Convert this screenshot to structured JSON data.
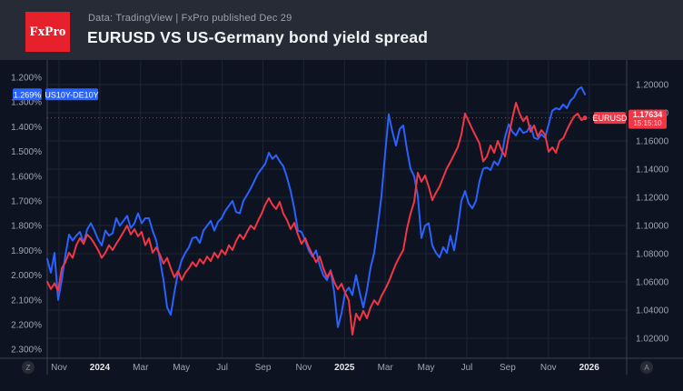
{
  "header": {
    "logo_text": "FxPro",
    "subtitle": "Data: TradingView | FxPro published Dec 29",
    "title": "EURUSD VS US-Germany bond yield spread"
  },
  "controls": {
    "z_label": "Z",
    "a_label": "A"
  },
  "colors": {
    "header_bg": "#272b35",
    "chart_bg": "#0d1320",
    "blue": "#2962ff",
    "red": "#f23645",
    "grid": "#1d2534",
    "axis_line": "#3c4250",
    "tick_text": "#9fa6b2",
    "year_text": "#e4e7ec",
    "logo_red": "#e6212b"
  },
  "chart_data": {
    "type": "line",
    "title": "EURUSD VS US-Germany bond yield spread",
    "x_axis": {
      "unit": "months since Nov 2023",
      "range": [
        -0.58,
        27.9
      ],
      "ticks": [
        {
          "label": "Nov",
          "m": 0,
          "bold": false
        },
        {
          "label": "2024",
          "m": 2,
          "bold": true
        },
        {
          "label": "Mar",
          "m": 4,
          "bold": false
        },
        {
          "label": "May",
          "m": 6,
          "bold": false
        },
        {
          "label": "Jul",
          "m": 8,
          "bold": false
        },
        {
          "label": "Sep",
          "m": 10,
          "bold": false
        },
        {
          "label": "Nov",
          "m": 12,
          "bold": false
        },
        {
          "label": "2025",
          "m": 14,
          "bold": true
        },
        {
          "label": "Mar",
          "m": 16,
          "bold": false
        },
        {
          "label": "May",
          "m": 18,
          "bold": false
        },
        {
          "label": "Jul",
          "m": 20,
          "bold": false
        },
        {
          "label": "Sep",
          "m": 22,
          "bold": false
        },
        {
          "label": "Nov",
          "m": 24,
          "bold": false
        },
        {
          "label": "2026",
          "m": 26,
          "bold": true
        }
      ]
    },
    "left_axis": {
      "name": "US10Y-DE10Y spread (%), inverted",
      "range_top_to_bottom": [
        1.2,
        2.3
      ],
      "ticks": [
        {
          "label": "1.200%",
          "value": 1.2
        },
        {
          "label": "1.300%",
          "value": 1.3
        },
        {
          "label": "1.400%",
          "value": 1.4
        },
        {
          "label": "1.500%",
          "value": 1.5
        },
        {
          "label": "1.600%",
          "value": 1.6
        },
        {
          "label": "1.700%",
          "value": 1.7
        },
        {
          "label": "1.800%",
          "value": 1.8
        },
        {
          "label": "1.900%",
          "value": 1.9
        },
        {
          "label": "2.000%",
          "value": 2.0
        },
        {
          "label": "2.100%",
          "value": 2.1
        },
        {
          "label": "2.200%",
          "value": 2.2
        },
        {
          "label": "2.300%",
          "value": 2.3
        }
      ]
    },
    "right_axis": {
      "name": "EURUSD",
      "range_bottom_to_top": [
        1.02,
        1.2
      ],
      "ticks": [
        {
          "label": "1.20000",
          "value": 1.2
        },
        {
          "label": "1.18000",
          "value": 1.18
        },
        {
          "label": "1.16000",
          "value": 1.16
        },
        {
          "label": "1.14000",
          "value": 1.14
        },
        {
          "label": "1.12000",
          "value": 1.12
        },
        {
          "label": "1.10000",
          "value": 1.1
        },
        {
          "label": "1.08000",
          "value": 1.08
        },
        {
          "label": "1.06000",
          "value": 1.06
        },
        {
          "label": "1.04000",
          "value": 1.04
        },
        {
          "label": "1.02000",
          "value": 1.02
        }
      ]
    },
    "price_line": {
      "series": "EURUSD",
      "value": 1.17634,
      "color": "#f23645",
      "style": "dotted"
    },
    "badges": {
      "spread_value": "1.269%",
      "spread_label": "US10Y-DE10Y",
      "spread_value_num": 1.269,
      "eurusd_label": "EURUSD",
      "eurusd_value": "1.17634",
      "eurusd_time": "15:15:10",
      "eurusd_value_num": 1.17634
    },
    "series": [
      {
        "name": "US10Y-DE10Y",
        "axis": "left",
        "color": "#2962ff",
        "t0": -0.58,
        "dt": 0.1782,
        "values": [
          1.935,
          1.99,
          1.91,
          2.1,
          2.02,
          1.92,
          1.836,
          1.86,
          1.84,
          1.825,
          1.87,
          1.815,
          1.79,
          1.82,
          1.855,
          1.88,
          1.82,
          1.84,
          1.83,
          1.77,
          1.8,
          1.78,
          1.76,
          1.81,
          1.79,
          1.75,
          1.79,
          1.77,
          1.77,
          1.82,
          1.86,
          1.935,
          2.02,
          2.13,
          2.16,
          2.07,
          1.99,
          1.94,
          1.91,
          1.887,
          1.85,
          1.846,
          1.87,
          1.82,
          1.8,
          1.78,
          1.82,
          1.785,
          1.77,
          1.74,
          1.72,
          1.7,
          1.745,
          1.75,
          1.7,
          1.675,
          1.65,
          1.62,
          1.59,
          1.57,
          1.55,
          1.505,
          1.53,
          1.515,
          1.54,
          1.56,
          1.605,
          1.66,
          1.73,
          1.82,
          1.825,
          1.86,
          1.9,
          1.925,
          1.9,
          1.96,
          2.0,
          2.02,
          1.98,
          2.07,
          2.21,
          2.155,
          2.07,
          2.05,
          2.08,
          2.0,
          2.07,
          2.13,
          2.06,
          1.97,
          1.91,
          1.8,
          1.68,
          1.51,
          1.35,
          1.42,
          1.476,
          1.41,
          1.395,
          1.49,
          1.57,
          1.6,
          1.68,
          1.85,
          1.8,
          1.79,
          1.88,
          1.91,
          1.928,
          1.887,
          1.91,
          1.84,
          1.9,
          1.81,
          1.7,
          1.66,
          1.71,
          1.73,
          1.7,
          1.62,
          1.57,
          1.565,
          1.575,
          1.54,
          1.555,
          1.52,
          1.44,
          1.39,
          1.42,
          1.435,
          1.405,
          1.425,
          1.42,
          1.395,
          1.445,
          1.45,
          1.43,
          1.445,
          1.39,
          1.335,
          1.325,
          1.33,
          1.31,
          1.325,
          1.295,
          1.28,
          1.25,
          1.24,
          1.269
        ]
      },
      {
        "name": "EURUSD",
        "axis": "right",
        "color": "#f23645",
        "t0": -0.58,
        "dt": 0.1782,
        "values": [
          1.06,
          1.055,
          1.059,
          1.0536,
          1.0697,
          1.074,
          1.0807,
          1.077,
          1.086,
          1.091,
          1.087,
          1.0936,
          1.091,
          1.087,
          1.0826,
          1.077,
          1.0807,
          1.086,
          1.0826,
          1.087,
          1.091,
          1.0955,
          1.1,
          1.0936,
          1.0974,
          1.0923,
          1.0955,
          1.086,
          1.091,
          1.0807,
          1.0845,
          1.0794,
          1.073,
          1.077,
          1.0697,
          1.0632,
          1.0677,
          1.0613,
          1.0665,
          1.0697,
          1.074,
          1.071,
          1.0761,
          1.073,
          1.078,
          1.0748,
          1.0807,
          1.077,
          1.0826,
          1.0794,
          1.086,
          1.0826,
          1.089,
          1.0936,
          1.0903,
          1.0955,
          1.1,
          1.0974,
          1.1032,
          1.1084,
          1.1148,
          1.1194,
          1.1148,
          1.1116,
          1.1168,
          1.1084,
          1.1039,
          1.0974,
          1.1019,
          1.0936,
          1.087,
          1.091,
          1.0845,
          1.0794,
          1.074,
          1.078,
          1.0697,
          1.0632,
          1.0677,
          1.06,
          1.0548,
          1.0587,
          1.0523,
          1.047,
          1.0226,
          1.0374,
          1.0329,
          1.0394,
          1.0342,
          1.042,
          1.047,
          1.0439,
          1.05,
          1.0548,
          1.06,
          1.0665,
          1.073,
          1.078,
          1.0826,
          1.0974,
          1.1084,
          1.1168,
          1.1374,
          1.131,
          1.1355,
          1.1277,
          1.118,
          1.1232,
          1.1277,
          1.1342,
          1.1406,
          1.1452,
          1.1503,
          1.1555,
          1.1645,
          1.1794,
          1.174,
          1.1684,
          1.1632,
          1.1581,
          1.1455,
          1.149,
          1.1568,
          1.1516,
          1.16,
          1.1535,
          1.149,
          1.1632,
          1.1761,
          1.1871,
          1.1794,
          1.174,
          1.1774,
          1.1665,
          1.171,
          1.1632,
          1.1677,
          1.1645,
          1.1523,
          1.1555,
          1.1516,
          1.16,
          1.1619,
          1.1677,
          1.1729,
          1.1774,
          1.1794,
          1.1748,
          1.17634
        ]
      }
    ]
  }
}
